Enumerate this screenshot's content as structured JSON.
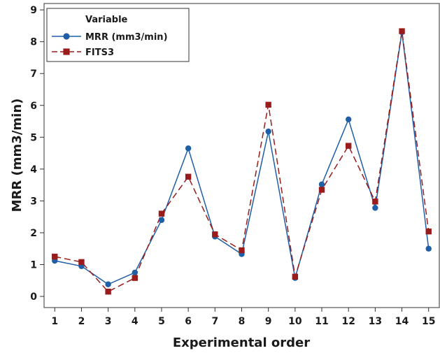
{
  "chart_data": {
    "type": "line",
    "title": "",
    "xlabel": "Experimental order",
    "ylabel": "MRR (mm3/min)",
    "x": [
      1,
      2,
      3,
      4,
      5,
      6,
      7,
      8,
      9,
      10,
      11,
      12,
      13,
      14,
      15
    ],
    "xlim": [
      0.6,
      15.4
    ],
    "ylim": [
      -0.35,
      9.2
    ],
    "yticks": [
      0,
      1,
      2,
      3,
      4,
      5,
      6,
      7,
      8,
      9
    ],
    "grid": false,
    "legend": {
      "title": "Variable",
      "placement": "top-left"
    },
    "series": [
      {
        "name": "MRR (mm3/min)",
        "color": "#1f5fa8",
        "marker": "circle",
        "line_style": "solid",
        "values": [
          1.12,
          0.95,
          0.38,
          0.75,
          2.4,
          4.65,
          1.88,
          1.33,
          5.18,
          0.58,
          3.52,
          5.56,
          2.78,
          8.3,
          1.5
        ]
      },
      {
        "name": "FITS3",
        "color": "#9a1b1b",
        "marker": "square",
        "line_style": "dashed",
        "values": [
          1.25,
          1.08,
          0.15,
          0.58,
          2.6,
          3.76,
          1.95,
          1.45,
          6.02,
          0.62,
          3.35,
          4.73,
          2.98,
          8.33,
          2.04
        ]
      }
    ]
  }
}
